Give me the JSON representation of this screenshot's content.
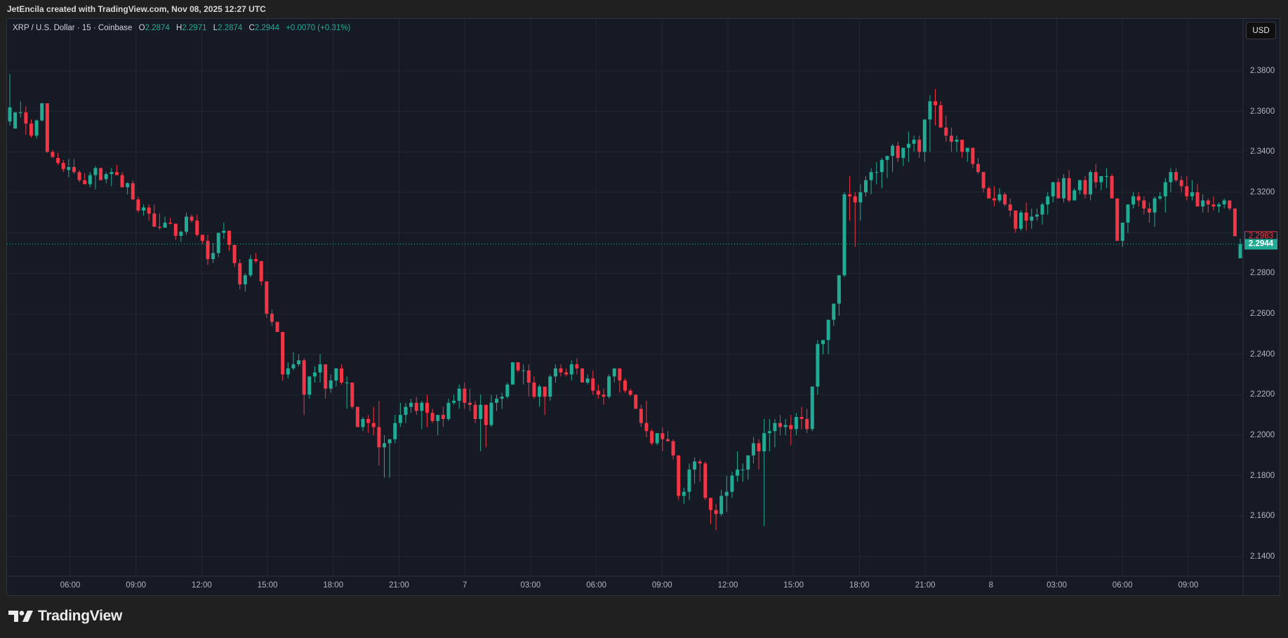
{
  "header": {
    "credit": "JetEncila created with TradingView.com, Nov 08, 2025 12:27 UTC"
  },
  "legend": {
    "symbol": "XRP / U.S. Dollar · 15 · Coinbase",
    "open_label": "O",
    "open": "2.2874",
    "high_label": "H",
    "high": "2.2971",
    "low_label": "L",
    "low": "2.2874",
    "close_label": "C",
    "close": "2.2944",
    "change": "+0.0070 (+0.31%)"
  },
  "currency_button": "USD",
  "price_axis": {
    "labels": [
      "2.3800",
      "2.3600",
      "2.3400",
      "2.3200",
      "2.2800",
      "2.2600",
      "2.2400",
      "2.2200",
      "2.2000",
      "2.1800",
      "2.1600",
      "2.1400"
    ],
    "prev_close_tag": "2.2983",
    "last_price_tag": "2.2944"
  },
  "time_axis": {
    "labels": [
      "06:00",
      "09:00",
      "12:00",
      "15:00",
      "18:00",
      "21:00",
      "7",
      "03:00",
      "06:00",
      "09:00",
      "12:00",
      "15:00",
      "18:00",
      "21:00",
      "8",
      "03:00",
      "06:00",
      "09:00"
    ]
  },
  "colors": {
    "up": "#22ab94",
    "down": "#f23645",
    "background": "#161a25",
    "grid": "#232733"
  },
  "logo": {
    "text": "TradingView"
  },
  "chart_data": {
    "type": "candlestick",
    "title": "XRP / U.S. Dollar · 15 · Coinbase",
    "interval": "15m",
    "xlabel": "",
    "ylabel": "USD",
    "ylim": [
      2.134,
      2.402
    ],
    "y_ticks": [
      2.14,
      2.16,
      2.18,
      2.2,
      2.22,
      2.24,
      2.26,
      2.28,
      2.3,
      2.32,
      2.34,
      2.36,
      2.38
    ],
    "x_ticks": [
      "06:00",
      "09:00",
      "12:00",
      "15:00",
      "18:00",
      "21:00",
      "7",
      "03:00",
      "06:00",
      "09:00",
      "12:00",
      "15:00",
      "18:00",
      "21:00",
      "8",
      "03:00",
      "06:00",
      "09:00"
    ],
    "grid": true,
    "last_price": 2.2944,
    "prev_close_line": 2.2983,
    "first_candle_time": "Nov 6 01:15",
    "candles_ohlc": [
      [
        2.355,
        2.3785,
        2.353,
        2.362
      ],
      [
        2.3515,
        2.357,
        2.3515,
        2.3595
      ],
      [
        2.3595,
        2.365,
        2.357,
        2.3595
      ],
      [
        2.3595,
        2.3625,
        2.3485,
        2.354
      ],
      [
        2.354,
        2.356,
        2.347,
        2.348
      ],
      [
        2.348,
        2.356,
        2.3465,
        2.3555
      ],
      [
        2.3555,
        2.364,
        2.355,
        2.364
      ],
      [
        2.364,
        2.364,
        2.3395,
        2.34
      ],
      [
        2.34,
        2.341,
        2.337,
        2.3375
      ],
      [
        2.337,
        2.3395,
        2.3335,
        2.3345
      ],
      [
        2.3345,
        2.336,
        2.33,
        2.3315
      ],
      [
        2.331,
        2.3365,
        2.3275,
        2.3325
      ],
      [
        2.3325,
        2.3365,
        2.329,
        2.33
      ],
      [
        2.33,
        2.331,
        2.325,
        2.326
      ],
      [
        2.326,
        2.3295,
        2.324,
        2.324
      ],
      [
        2.324,
        2.33,
        2.3225,
        2.3285
      ],
      [
        2.3285,
        2.333,
        2.3215,
        2.332
      ],
      [
        2.332,
        2.332,
        2.3265,
        2.326
      ],
      [
        2.3265,
        2.33,
        2.3245,
        2.329
      ],
      [
        2.329,
        2.332,
        2.323,
        2.33
      ],
      [
        2.33,
        2.3335,
        2.3285,
        2.3285
      ],
      [
        2.3285,
        2.33,
        2.3225,
        2.3225
      ],
      [
        2.3225,
        2.325,
        2.319,
        2.3245
      ],
      [
        2.3245,
        2.326,
        2.316,
        2.3165
      ],
      [
        2.3165,
        2.318,
        2.31,
        2.311
      ],
      [
        2.311,
        2.314,
        2.3085,
        2.3125
      ],
      [
        2.3125,
        2.314,
        2.306,
        2.3095
      ],
      [
        2.3095,
        2.314,
        2.305,
        2.303
      ],
      [
        2.303,
        2.3095,
        2.3015,
        2.3025
      ],
      [
        2.3025,
        2.308,
        2.3025,
        2.305
      ],
      [
        2.305,
        2.3075,
        2.304,
        2.3045
      ],
      [
        2.3045,
        2.3045,
        2.2965,
        2.2985
      ],
      [
        2.2985,
        2.301,
        2.2955,
        2.3005
      ],
      [
        2.3005,
        2.31,
        2.299,
        2.308
      ],
      [
        2.308,
        2.309,
        2.305,
        2.306
      ],
      [
        2.306,
        2.309,
        2.298,
        2.299
      ],
      [
        2.299,
        2.299,
        2.2945,
        2.296
      ],
      [
        2.296,
        2.299,
        2.284,
        2.287
      ],
      [
        2.287,
        2.295,
        2.285,
        2.29
      ],
      [
        2.29,
        2.299,
        2.288,
        2.3
      ],
      [
        2.3,
        2.305,
        2.297,
        2.301
      ],
      [
        2.301,
        2.3,
        2.291,
        2.294
      ],
      [
        2.294,
        2.288,
        2.283,
        2.285
      ],
      [
        2.285,
        2.287,
        2.272,
        2.2745
      ],
      [
        2.2745,
        2.28,
        2.271,
        2.279
      ],
      [
        2.279,
        2.289,
        2.278,
        2.287
      ],
      [
        2.287,
        2.29,
        2.285,
        2.286
      ],
      [
        2.286,
        2.283,
        2.274,
        2.276
      ],
      [
        2.276,
        2.271,
        2.258,
        2.26
      ],
      [
        2.26,
        2.262,
        2.254,
        2.256
      ],
      [
        2.256,
        2.256,
        2.251,
        2.251
      ],
      [
        2.251,
        2.247,
        2.227,
        2.23
      ],
      [
        2.23,
        2.236,
        2.228,
        2.233
      ],
      [
        2.233,
        2.241,
        2.232,
        2.235
      ],
      [
        2.235,
        2.24,
        2.234,
        2.237
      ],
      [
        2.237,
        2.238,
        2.21,
        2.22
      ],
      [
        2.22,
        2.229,
        2.218,
        2.229
      ],
      [
        2.229,
        2.234,
        2.226,
        2.231
      ],
      [
        2.231,
        2.24,
        2.226,
        2.235
      ],
      [
        2.235,
        2.229,
        2.218,
        2.223
      ],
      [
        2.223,
        2.23,
        2.221,
        2.227
      ],
      [
        2.227,
        2.231,
        2.224,
        2.233
      ],
      [
        2.233,
        2.235,
        2.225,
        2.226
      ],
      [
        2.226,
        2.229,
        2.213,
        2.226
      ],
      [
        2.226,
        2.226,
        2.213,
        2.214
      ],
      [
        2.214,
        2.214,
        2.204,
        2.204
      ],
      [
        2.204,
        2.209,
        2.202,
        2.208
      ],
      [
        2.208,
        2.21,
        2.201,
        2.206
      ],
      [
        2.206,
        2.214,
        2.2,
        2.204
      ],
      [
        2.204,
        2.217,
        2.185,
        2.194
      ],
      [
        2.194,
        2.2,
        2.179,
        2.196
      ],
      [
        2.196,
        2.198,
        2.179,
        2.198
      ],
      [
        2.198,
        2.21,
        2.196,
        2.206
      ],
      [
        2.206,
        2.216,
        2.204,
        2.21
      ],
      [
        2.21,
        2.216,
        2.206,
        2.214
      ],
      [
        2.214,
        2.218,
        2.211,
        2.216
      ],
      [
        2.216,
        2.219,
        2.21,
        2.212
      ],
      [
        2.212,
        2.217,
        2.203,
        2.216
      ],
      [
        2.216,
        2.22,
        2.204,
        2.211
      ],
      [
        2.211,
        2.213,
        2.206,
        2.207
      ],
      [
        2.207,
        2.21,
        2.2,
        2.21
      ],
      [
        2.21,
        2.214,
        2.204,
        2.208
      ],
      [
        2.208,
        2.218,
        2.207,
        2.216
      ],
      [
        2.216,
        2.22,
        2.215,
        2.217
      ],
      [
        2.217,
        2.225,
        2.213,
        2.223
      ],
      [
        2.223,
        2.226,
        2.213,
        2.216
      ],
      [
        2.216,
        2.223,
        2.212,
        2.215
      ],
      [
        2.215,
        2.217,
        2.206,
        2.208
      ],
      [
        2.208,
        2.22,
        2.192,
        2.215
      ],
      [
        2.215,
        2.215,
        2.194,
        2.205
      ],
      [
        2.205,
        2.22,
        2.204,
        2.216
      ],
      [
        2.216,
        2.22,
        2.212,
        2.218
      ],
      [
        2.218,
        2.221,
        2.213,
        2.219
      ],
      [
        2.219,
        2.226,
        2.218,
        2.225
      ],
      [
        2.225,
        2.236,
        2.225,
        2.236
      ],
      [
        2.236,
        2.236,
        2.231,
        2.232
      ],
      [
        2.232,
        2.235,
        2.225,
        2.232
      ],
      [
        2.232,
        2.235,
        2.219,
        2.226
      ],
      [
        2.226,
        2.229,
        2.218,
        2.219
      ],
      [
        2.219,
        2.225,
        2.214,
        2.224
      ],
      [
        2.224,
        2.224,
        2.21,
        2.219
      ],
      [
        2.219,
        2.23,
        2.217,
        2.229
      ],
      [
        2.229,
        2.235,
        2.226,
        2.233
      ],
      [
        2.233,
        2.235,
        2.229,
        2.231
      ],
      [
        2.231,
        2.233,
        2.229,
        2.23
      ],
      [
        2.23,
        2.237,
        2.227,
        2.235
      ],
      [
        2.235,
        2.238,
        2.23,
        2.233
      ],
      [
        2.233,
        2.233,
        2.226,
        2.226
      ],
      [
        2.226,
        2.23,
        2.225,
        2.228
      ],
      [
        2.228,
        2.232,
        2.22,
        2.222
      ],
      [
        2.222,
        2.225,
        2.218,
        2.22
      ],
      [
        2.22,
        2.223,
        2.215,
        2.219
      ],
      [
        2.219,
        2.23,
        2.218,
        2.229
      ],
      [
        2.229,
        2.233,
        2.226,
        2.233
      ],
      [
        2.233,
        2.232,
        2.221,
        2.227
      ],
      [
        2.227,
        2.228,
        2.221,
        2.222
      ],
      [
        2.222,
        2.223,
        2.219,
        2.22
      ],
      [
        2.22,
        2.22,
        2.213,
        2.213
      ],
      [
        2.213,
        2.215,
        2.204,
        2.206
      ],
      [
        2.206,
        2.217,
        2.199,
        2.202
      ],
      [
        2.202,
        2.203,
        2.195,
        2.196
      ],
      [
        2.196,
        2.201,
        2.195,
        2.201
      ],
      [
        2.201,
        2.204,
        2.192,
        2.198
      ],
      [
        2.198,
        2.202,
        2.197,
        2.197
      ],
      [
        2.197,
        2.198,
        2.188,
        2.19
      ],
      [
        2.19,
        2.188,
        2.168,
        2.17
      ],
      [
        2.17,
        2.174,
        2.166,
        2.172
      ],
      [
        2.172,
        2.186,
        2.168,
        2.183
      ],
      [
        2.183,
        2.189,
        2.176,
        2.187
      ],
      [
        2.187,
        2.188,
        2.177,
        2.186
      ],
      [
        2.186,
        2.187,
        2.168,
        2.169
      ],
      [
        2.169,
        2.162,
        2.156,
        2.163
      ],
      [
        2.163,
        2.166,
        2.153,
        2.161
      ],
      [
        2.161,
        2.173,
        2.16,
        2.17
      ],
      [
        2.17,
        2.18,
        2.162,
        2.172
      ],
      [
        2.172,
        2.182,
        2.169,
        2.18
      ],
      [
        2.18,
        2.192,
        2.177,
        2.183
      ],
      [
        2.183,
        2.186,
        2.177,
        2.183
      ],
      [
        2.183,
        2.189,
        2.178,
        2.19
      ],
      [
        2.19,
        2.199,
        2.186,
        2.196
      ],
      [
        2.196,
        2.198,
        2.183,
        2.192
      ],
      [
        2.192,
        2.208,
        2.155,
        2.201
      ],
      [
        2.201,
        2.208,
        2.192,
        2.202
      ],
      [
        2.202,
        2.208,
        2.194,
        2.206
      ],
      [
        2.206,
        2.21,
        2.2,
        2.204
      ],
      [
        2.204,
        2.208,
        2.2,
        2.205
      ],
      [
        2.205,
        2.21,
        2.195,
        2.203
      ],
      [
        2.203,
        2.211,
        2.2,
        2.209
      ],
      [
        2.209,
        2.214,
        2.203,
        2.208
      ],
      [
        2.208,
        2.213,
        2.201,
        2.203
      ],
      [
        2.203,
        2.224,
        2.202,
        2.224
      ],
      [
        2.224,
        2.247,
        2.22,
        2.245
      ],
      [
        2.245,
        2.247,
        2.24,
        2.247
      ],
      [
        2.247,
        2.254,
        2.24,
        2.257
      ],
      [
        2.257,
        2.265,
        2.254,
        2.265
      ],
      [
        2.265,
        2.273,
        2.259,
        2.279
      ],
      [
        2.279,
        2.32,
        2.278,
        2.319
      ],
      [
        2.319,
        2.328,
        2.306,
        2.318
      ],
      [
        2.318,
        2.32,
        2.293,
        2.315
      ],
      [
        2.315,
        2.324,
        2.306,
        2.32
      ],
      [
        2.32,
        2.328,
        2.318,
        2.326
      ],
      [
        2.326,
        2.332,
        2.319,
        2.33
      ],
      [
        2.33,
        2.335,
        2.324,
        2.33
      ],
      [
        2.33,
        2.337,
        2.322,
        2.336
      ],
      [
        2.336,
        2.338,
        2.327,
        2.338
      ],
      [
        2.338,
        2.344,
        2.33,
        2.343
      ],
      [
        2.343,
        2.345,
        2.335,
        2.337
      ],
      [
        2.337,
        2.338,
        2.333,
        2.342
      ],
      [
        2.342,
        2.35,
        2.335,
        2.344
      ],
      [
        2.344,
        2.348,
        2.34,
        2.346
      ],
      [
        2.346,
        2.348,
        2.337,
        2.34
      ],
      [
        2.34,
        2.346,
        2.335,
        2.356
      ],
      [
        2.356,
        2.368,
        2.34,
        2.365
      ],
      [
        2.365,
        2.371,
        2.353,
        2.363
      ],
      [
        2.363,
        2.365,
        2.356,
        2.352
      ],
      [
        2.352,
        2.358,
        2.345,
        2.348
      ],
      [
        2.348,
        2.352,
        2.34,
        2.345
      ],
      [
        2.345,
        2.348,
        2.34,
        2.346
      ],
      [
        2.346,
        2.344,
        2.337,
        2.34
      ],
      [
        2.34,
        2.341,
        2.335,
        2.342
      ],
      [
        2.342,
        2.342,
        2.332,
        2.334
      ],
      [
        2.334,
        2.337,
        2.329,
        2.33
      ],
      [
        2.33,
        2.33,
        2.32,
        2.322
      ],
      [
        2.322,
        2.323,
        2.317,
        2.317
      ],
      [
        2.317,
        2.323,
        2.313,
        2.316
      ],
      [
        2.316,
        2.322,
        2.315,
        2.319
      ],
      [
        2.319,
        2.32,
        2.313,
        2.314
      ],
      [
        2.314,
        2.317,
        2.308,
        2.311
      ],
      [
        2.311,
        2.306,
        2.3,
        2.302
      ],
      [
        2.302,
        2.311,
        2.301,
        2.31
      ],
      [
        2.31,
        2.315,
        2.301,
        2.306
      ],
      [
        2.306,
        2.312,
        2.302,
        2.308
      ],
      [
        2.308,
        2.312,
        2.306,
        2.309
      ],
      [
        2.309,
        2.315,
        2.304,
        2.314
      ],
      [
        2.314,
        2.32,
        2.309,
        2.318
      ],
      [
        2.318,
        2.325,
        2.315,
        2.325
      ],
      [
        2.325,
        2.327,
        2.32,
        2.317
      ],
      [
        2.317,
        2.329,
        2.315,
        2.327
      ],
      [
        2.327,
        2.331,
        2.315,
        2.316
      ],
      [
        2.316,
        2.322,
        2.317,
        2.321
      ],
      [
        2.321,
        2.325,
        2.319,
        2.326
      ],
      [
        2.326,
        2.328,
        2.317,
        2.319
      ],
      [
        2.319,
        2.331,
        2.316,
        2.33
      ],
      [
        2.33,
        2.334,
        2.322,
        2.325
      ],
      [
        2.325,
        2.326,
        2.321,
        2.328
      ],
      [
        2.328,
        2.332,
        2.322,
        2.328
      ],
      [
        2.328,
        2.329,
        2.318,
        2.317
      ],
      [
        2.317,
        2.316,
        2.301,
        2.296
      ],
      [
        2.296,
        2.302,
        2.293,
        2.305
      ],
      [
        2.305,
        2.313,
        2.3,
        2.314
      ],
      [
        2.314,
        2.32,
        2.312,
        2.318
      ],
      [
        2.318,
        2.32,
        2.313,
        2.316
      ],
      [
        2.316,
        2.318,
        2.309,
        2.312
      ],
      [
        2.312,
        2.315,
        2.305,
        2.31
      ],
      [
        2.31,
        2.318,
        2.303,
        2.317
      ],
      [
        2.317,
        2.32,
        2.316,
        2.318
      ],
      [
        2.318,
        2.327,
        2.31,
        2.325
      ],
      [
        2.325,
        2.332,
        2.32,
        2.33
      ],
      [
        2.33,
        2.332,
        2.325,
        2.326
      ],
      [
        2.326,
        2.328,
        2.32,
        2.323
      ],
      [
        2.323,
        2.328,
        2.316,
        2.318
      ],
      [
        2.318,
        2.326,
        2.316,
        2.32
      ],
      [
        2.32,
        2.324,
        2.314,
        2.313
      ],
      [
        2.313,
        2.319,
        2.31,
        2.316
      ],
      [
        2.316,
        2.317,
        2.31,
        2.314
      ],
      [
        2.314,
        2.318,
        2.311,
        2.313
      ],
      [
        2.313,
        2.315,
        2.31,
        2.314
      ],
      [
        2.314,
        2.317,
        2.312,
        2.316
      ],
      [
        2.316,
        2.316,
        2.311,
        2.312
      ],
      [
        2.312,
        2.312,
        2.3,
        2.2983
      ],
      [
        2.2874,
        2.2971,
        2.2874,
        2.2944
      ]
    ]
  }
}
